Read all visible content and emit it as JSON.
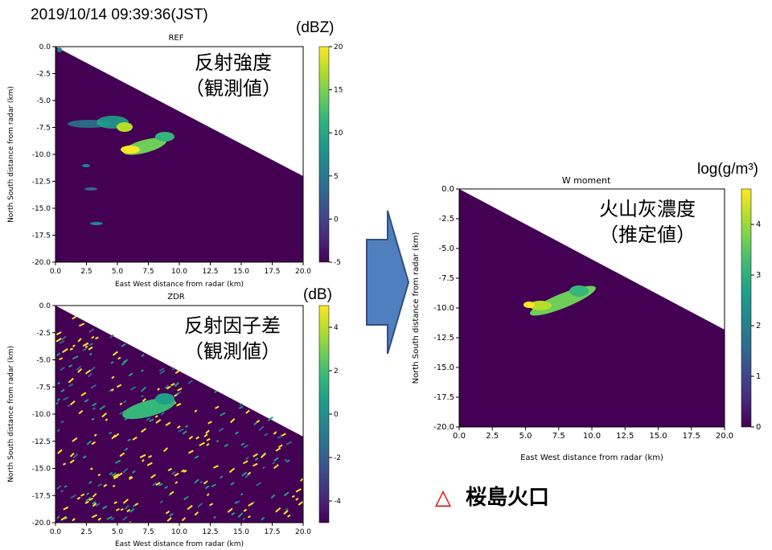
{
  "header": {
    "timestamp": "2019/10/14 09:39:36(JST)"
  },
  "panels": {
    "ref": {
      "title": "REF",
      "unit": "(dBZ)",
      "label_line1": "反射強度",
      "label_line2": "（観測値）"
    },
    "zdr": {
      "title": "ZDR",
      "unit": "(dB)",
      "label_line1": "反射因子差",
      "label_line2": "（観測値）"
    },
    "w": {
      "title": "W moment",
      "unit": "log(g/m³)",
      "label_line1": "火山灰濃度",
      "label_line2": "（推定値）"
    }
  },
  "legend": {
    "symbol": "△",
    "label": "桜島火口"
  },
  "colors": {
    "background": "#440154",
    "viridis": [
      "#440154",
      "#482878",
      "#3e4989",
      "#31688e",
      "#26828e",
      "#1f9e89",
      "#35b779",
      "#6ece58",
      "#b5de2b",
      "#fde725"
    ],
    "arrow_fill": "#4f7fbf",
    "arrow_stroke": "#2f4f7f",
    "triangle": "#e00000"
  },
  "chart_data": [
    {
      "type": "heatmap",
      "title": "REF",
      "xlabel": "East West distance from radar (km)",
      "ylabel": "North South distance from radar (km)",
      "xlim": [
        0,
        20
      ],
      "ylim": [
        -20,
        0
      ],
      "xticks": [
        "0.0",
        "2.5",
        "5.0",
        "7.5",
        "10.0",
        "12.5",
        "15.0",
        "17.5",
        "20.0"
      ],
      "yticks": [
        "0.0",
        "-2.5",
        "-5.0",
        "-7.5",
        "-10.0",
        "-12.5",
        "-15.0",
        "-17.5",
        "-20.0"
      ],
      "colorbar": {
        "label": "(dBZ)",
        "range": [
          -5,
          20
        ],
        "ticks": [
          "20",
          "15",
          "10",
          "5",
          "0",
          "-5"
        ]
      },
      "sector_edge": [
        [
          0,
          0
        ],
        [
          20,
          -12
        ]
      ],
      "features": [
        {
          "x": [
            4.5,
            9.5
          ],
          "y": [
            -8.5,
            -10.2
          ],
          "value": 17
        },
        {
          "x": [
            1.5,
            6.5
          ],
          "y": [
            -7.0,
            -8.2
          ],
          "value": 8
        },
        {
          "x": [
            2.5,
            3.5
          ],
          "y": [
            -12.8,
            -13.5
          ],
          "value": 5
        },
        {
          "x": [
            3.0,
            4.0
          ],
          "y": [
            -16.5,
            -16.7
          ],
          "value": 6
        }
      ],
      "grid": false
    },
    {
      "type": "heatmap",
      "title": "ZDR",
      "xlabel": "East West distance from radar (km)",
      "ylabel": "North South distance from radar (km)",
      "xlim": [
        0,
        20
      ],
      "ylim": [
        -20,
        0
      ],
      "xticks": [
        "0.0",
        "2.5",
        "5.0",
        "7.5",
        "10.0",
        "12.5",
        "15.0",
        "17.5",
        "20.0"
      ],
      "yticks": [
        "0.0",
        "-2.5",
        "-5.0",
        "-7.5",
        "-10.0",
        "-12.5",
        "-15.0",
        "-17.5",
        "-20.0"
      ],
      "colorbar": {
        "label": "(dB)",
        "range": [
          -5,
          5
        ],
        "ticks": [
          "4",
          "2",
          "0",
          "-2",
          "-4"
        ]
      },
      "sector_edge": [
        [
          0,
          0
        ],
        [
          20,
          -12
        ]
      ],
      "features": [
        {
          "x": [
            5.0,
            10.0
          ],
          "y": [
            -8.0,
            -11.0
          ],
          "value": 1
        }
      ],
      "grid": false
    },
    {
      "type": "heatmap",
      "title": "W moment",
      "xlabel": "East West distance from radar (km)",
      "ylabel": "North South distance from radar (km)",
      "xlim": [
        0,
        20
      ],
      "ylim": [
        -20,
        0
      ],
      "xticks": [
        "0.0",
        "2.5",
        "5.0",
        "7.5",
        "10.0",
        "12.5",
        "15.0",
        "17.5",
        "20.0"
      ],
      "yticks": [
        "0.0",
        "-2.5",
        "-5.0",
        "-7.5",
        "-10.0",
        "-12.5",
        "-15.0",
        "-17.5",
        "-20.0"
      ],
      "colorbar": {
        "label": "log(g/m³)",
        "range": [
          0,
          4.7
        ],
        "ticks": [
          "4",
          "3",
          "2",
          "1",
          "0"
        ]
      },
      "sector_edge": [
        [
          0,
          0
        ],
        [
          20,
          -12
        ]
      ],
      "features": [
        {
          "x": [
            5.0,
            10.5
          ],
          "y": [
            -8.0,
            -10.3
          ],
          "value": 3.8
        }
      ],
      "grid": false
    }
  ]
}
